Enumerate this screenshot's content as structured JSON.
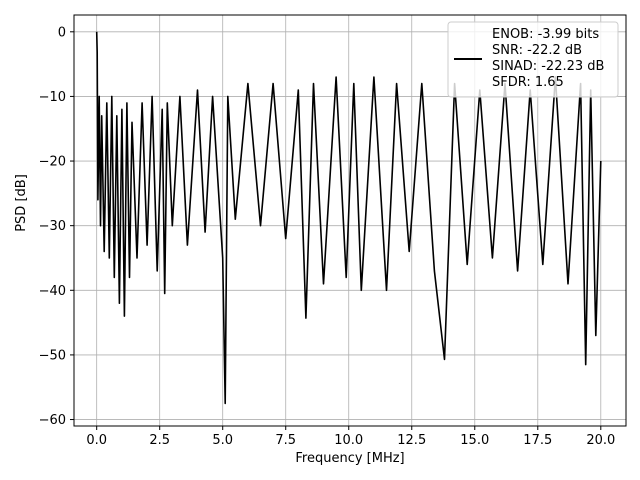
{
  "chart_data": {
    "type": "line",
    "xlabel": "Frequency [MHz]",
    "ylabel": "PSD [dB]",
    "xlim": [
      -0.9,
      21.0
    ],
    "ylim": [
      -61.0,
      2.6
    ],
    "xticks": [
      0.0,
      2.5,
      5.0,
      7.5,
      10.0,
      12.5,
      15.0,
      17.5,
      20.0
    ],
    "xtick_labels": [
      "0.0",
      "2.5",
      "5.0",
      "7.5",
      "10.0",
      "12.5",
      "15.0",
      "17.5",
      "20.0"
    ],
    "yticks": [
      0,
      -10,
      -20,
      -30,
      -40,
      -50,
      -60
    ],
    "ytick_labels": [
      "0",
      "−10",
      "−20",
      "−30",
      "−40",
      "−50",
      "−60"
    ],
    "grid": true,
    "legend_position": "upper-right",
    "series": [
      {
        "name": "ENOB: -3.99 bits\nSNR: -22.2 dB\nSINAD: -22.23 dB\nSFDR: 1.65",
        "legend_lines": [
          "ENOB: -3.99 bits",
          "SNR: -22.2 dB",
          "SINAD: -22.23 dB",
          "SFDR: 1.65"
        ],
        "color": "#000000",
        "x": [
          0.0,
          0.02,
          0.05,
          0.1,
          0.15,
          0.2,
          0.3,
          0.4,
          0.5,
          0.6,
          0.7,
          0.8,
          0.9,
          1.0,
          1.1,
          1.2,
          1.3,
          1.4,
          1.6,
          1.8,
          2.0,
          2.2,
          2.4,
          2.6,
          2.7,
          2.8,
          3.0,
          3.3,
          3.6,
          4.0,
          4.3,
          4.6,
          5.0,
          5.1,
          5.2,
          5.5,
          6.0,
          6.5,
          7.0,
          7.5,
          8.0,
          8.3,
          8.6,
          9.0,
          9.5,
          9.9,
          10.2,
          10.5,
          11.0,
          11.5,
          11.9,
          12.4,
          12.9,
          13.4,
          13.8,
          14.2,
          14.7,
          15.2,
          15.7,
          16.2,
          16.7,
          17.2,
          17.7,
          18.2,
          18.7,
          19.2,
          19.4,
          19.6,
          19.8,
          20.0
        ],
        "y": [
          0,
          -3.2,
          -26,
          -10,
          -30,
          -13,
          -34,
          -11,
          -35,
          -10,
          -38,
          -13,
          -42,
          -12,
          -44,
          -11,
          -38,
          -14,
          -35,
          -11,
          -33,
          -10,
          -37,
          -12,
          -40.5,
          -11,
          -30,
          -10,
          -33,
          -9,
          -31,
          -10,
          -35,
          -57.5,
          -10,
          -29,
          -8,
          -30,
          -8,
          -32,
          -9,
          -44.3,
          -8,
          -39,
          -7,
          -38,
          -8,
          -40,
          -7,
          -40,
          -8,
          -34,
          -8,
          -37,
          -50.7,
          -8,
          -36,
          -9,
          -35,
          -8,
          -37,
          -9,
          -36,
          -7,
          -39,
          -8,
          -51.5,
          -9,
          -47,
          -20
        ]
      }
    ]
  }
}
